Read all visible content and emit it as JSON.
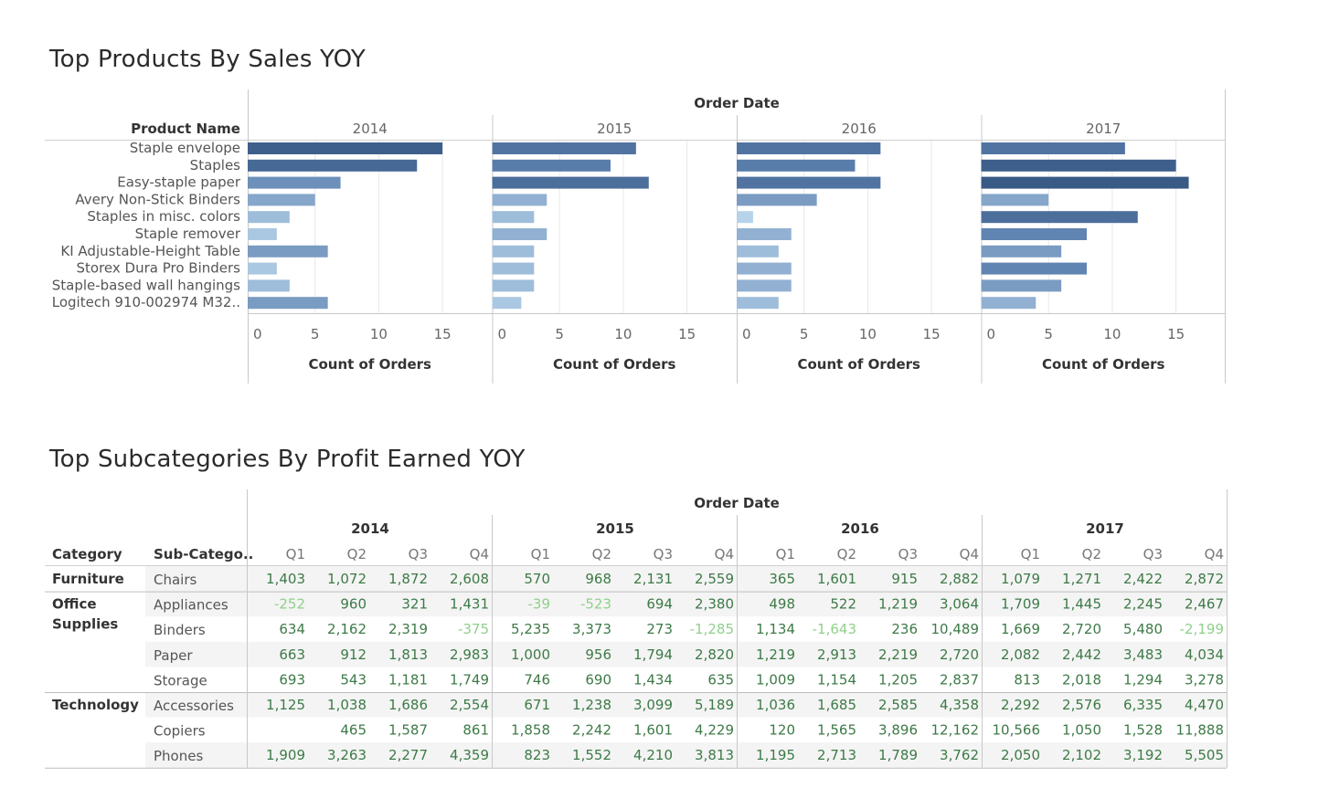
{
  "charts_titles": {
    "top": "Top Products By Sales YOY",
    "bottom": "Top Subcategories By Profit Earned YOY"
  },
  "colors": {
    "bar_dark": "#3a5a86",
    "bar_mid": "#5b7fae",
    "bar_light": "#b7d3ea",
    "profit_pos": "#3d7a47",
    "profit_neg": "#8fd08a",
    "grid": "#e8e8e8",
    "divider": "#c8c8c8",
    "row_band": "#f4f4f4"
  },
  "chart_data": [
    {
      "type": "bar",
      "orientation": "horizontal",
      "title": "Top Products By Sales YOY",
      "column_header": "Order Date",
      "row_header": "Product Name",
      "xlabel": "Count of Orders",
      "xlim": [
        0,
        17
      ],
      "xticks": [
        0,
        5,
        10,
        15
      ],
      "panels": [
        "2014",
        "2015",
        "2016",
        "2017"
      ],
      "categories": [
        "Staple envelope",
        "Staples",
        "Easy-staple paper",
        "Avery Non-Stick Binders",
        "Staples in misc. colors",
        "Staple remover",
        "KI Adjustable-Height Table",
        "Storex Dura Pro Binders",
        "Staple-based wall hangings",
        "Logitech 910-002974 M32.."
      ],
      "series": [
        {
          "name": "2014",
          "values": [
            15,
            13,
            7,
            5,
            3,
            2,
            6,
            2,
            3,
            6
          ]
        },
        {
          "name": "2015",
          "values": [
            11,
            9,
            12,
            4,
            3,
            4,
            3,
            3,
            3,
            2
          ]
        },
        {
          "name": "2016",
          "values": [
            11,
            9,
            11,
            6,
            1,
            4,
            3,
            4,
            4,
            3
          ]
        },
        {
          "name": "2017",
          "values": [
            11,
            15,
            16,
            5,
            12,
            8,
            6,
            8,
            6,
            4
          ]
        }
      ]
    },
    {
      "type": "table",
      "title": "Top Subcategories By Profit Earned YOY",
      "column_header": "Order Date",
      "row_headers": [
        "Category",
        "Sub-Catego.."
      ],
      "years": [
        "2014",
        "2015",
        "2016",
        "2017"
      ],
      "quarters": [
        "Q1",
        "Q2",
        "Q3",
        "Q4"
      ],
      "groups": [
        {
          "category": "Furniture",
          "rows": [
            {
              "sub": "Chairs",
              "values": [
                "1,403",
                "1,072",
                "1,872",
                "2,608",
                "570",
                "968",
                "2,131",
                "2,559",
                "365",
                "1,601",
                "915",
                "2,882",
                "1,079",
                "1,271",
                "2,422",
                "2,872"
              ]
            }
          ]
        },
        {
          "category": "Office Supplies",
          "rows": [
            {
              "sub": "Appliances",
              "values": [
                "-252",
                "960",
                "321",
                "1,431",
                "-39",
                "-523",
                "694",
                "2,380",
                "498",
                "522",
                "1,219",
                "3,064",
                "1,709",
                "1,445",
                "2,245",
                "2,467"
              ]
            },
            {
              "sub": "Binders",
              "values": [
                "634",
                "2,162",
                "2,319",
                "-375",
                "5,235",
                "3,373",
                "273",
                "-1,285",
                "1,134",
                "-1,643",
                "236",
                "10,489",
                "1,669",
                "2,720",
                "5,480",
                "-2,199"
              ]
            },
            {
              "sub": "Paper",
              "values": [
                "663",
                "912",
                "1,813",
                "2,983",
                "1,000",
                "956",
                "1,794",
                "2,820",
                "1,219",
                "2,913",
                "2,219",
                "2,720",
                "2,082",
                "2,442",
                "3,483",
                "4,034"
              ]
            },
            {
              "sub": "Storage",
              "values": [
                "693",
                "543",
                "1,181",
                "1,749",
                "746",
                "690",
                "1,434",
                "635",
                "1,009",
                "1,154",
                "1,205",
                "2,837",
                "813",
                "2,018",
                "1,294",
                "3,278"
              ]
            }
          ]
        },
        {
          "category": "Technology",
          "rows": [
            {
              "sub": "Accessories",
              "values": [
                "1,125",
                "1,038",
                "1,686",
                "2,554",
                "671",
                "1,238",
                "3,099",
                "5,189",
                "1,036",
                "1,685",
                "2,585",
                "4,358",
                "2,292",
                "2,576",
                "6,335",
                "4,470"
              ]
            },
            {
              "sub": "Copiers",
              "values": [
                "",
                "465",
                "1,587",
                "861",
                "1,858",
                "2,242",
                "1,601",
                "4,229",
                "120",
                "1,565",
                "3,896",
                "12,162",
                "10,566",
                "1,050",
                "1,528",
                "11,888"
              ]
            },
            {
              "sub": "Phones",
              "values": [
                "1,909",
                "3,263",
                "2,277",
                "4,359",
                "823",
                "1,552",
                "4,210",
                "3,813",
                "1,195",
                "2,713",
                "1,789",
                "3,762",
                "2,050",
                "2,102",
                "3,192",
                "5,505"
              ]
            }
          ]
        }
      ]
    }
  ]
}
